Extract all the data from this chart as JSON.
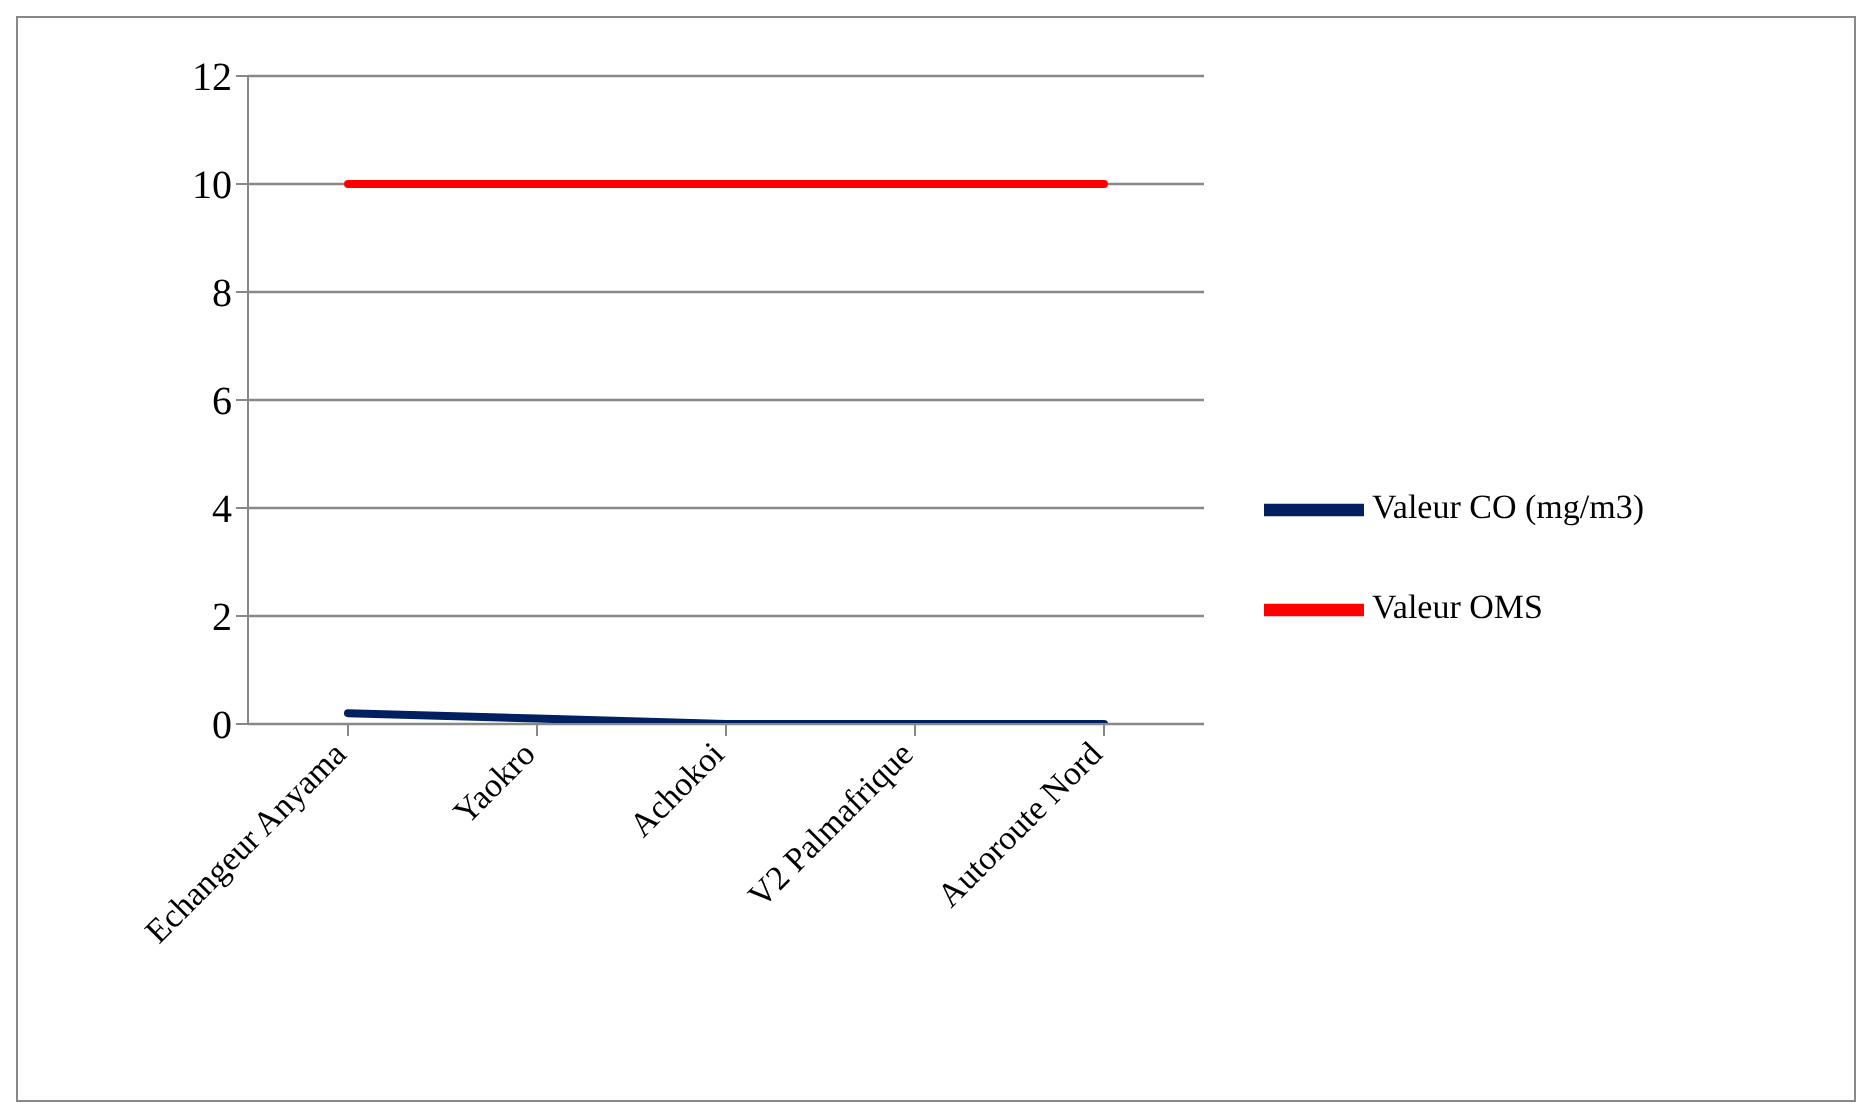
{
  "chart_data": {
    "type": "line",
    "categories": [
      "Echangeur Anyama",
      "Yaokro",
      "Achokoi",
      "V2 Palmafrique",
      "Autoroute Nord"
    ],
    "series": [
      {
        "name": "Valeur CO (mg/m3)",
        "color": "#002060",
        "values": [
          0.2,
          0.1,
          0,
          0,
          0
        ]
      },
      {
        "name": "Valeur OMS",
        "color": "#ff0000",
        "values": [
          10,
          10,
          10,
          10,
          10
        ]
      }
    ],
    "ylim": [
      0,
      12
    ],
    "yticks": [
      0,
      2,
      4,
      6,
      8,
      10,
      12
    ],
    "grid": "y",
    "legend": "right",
    "marker": "none"
  }
}
